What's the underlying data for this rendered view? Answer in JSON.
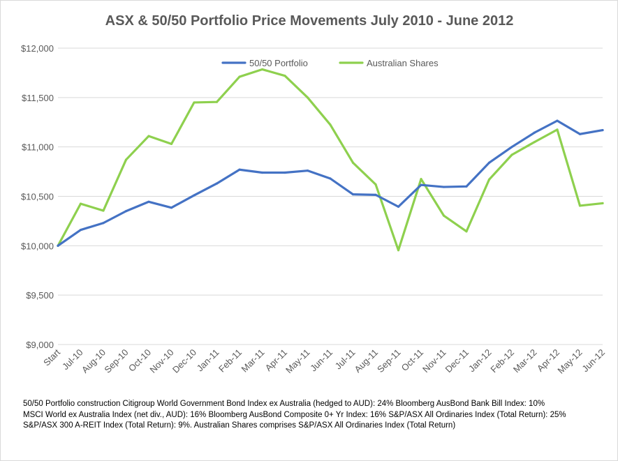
{
  "chart_data": {
    "type": "line",
    "title": "ASX & 50/50 Portfolio Price Movements July 2010 - June 2012",
    "xlabel": "",
    "ylabel": "",
    "ylim": [
      9000,
      12000
    ],
    "ytick_values": [
      9000,
      9500,
      10000,
      10500,
      11000,
      11500,
      12000
    ],
    "ytick_labels": [
      "$9,000",
      "$9,500",
      "$10,000",
      "$10,500",
      "$11,000",
      "$11,500",
      "$12,000"
    ],
    "grid": true,
    "legend_position": "top-center",
    "categories": [
      "Start",
      "Jul-10",
      "Aug-10",
      "Sep-10",
      "Oct-10",
      "Nov-10",
      "Dec-10",
      "Jan-11",
      "Feb-11",
      "Mar-11",
      "Apr-11",
      "May-11",
      "Jun-11",
      "Jul-11",
      "Aug-11",
      "Sep-11",
      "Oct-11",
      "Nov-11",
      "Dec-11",
      "Jan-12",
      "Feb-12",
      "Mar-12",
      "Apr-12",
      "May-12",
      "Jun-12"
    ],
    "series": [
      {
        "name": "50/50 Portfolio",
        "color": "#4472c4",
        "values": [
          10000,
          10160,
          10230,
          10350,
          10445,
          10385,
          10510,
          10630,
          10770,
          10740,
          10740,
          10760,
          10680,
          10520,
          10515,
          10395,
          10615,
          10595,
          10600,
          10840,
          11000,
          11145,
          11265,
          11130,
          11170
        ]
      },
      {
        "name": "Australian Shares",
        "color": "#8ed04e",
        "values": [
          10000,
          10425,
          10355,
          10870,
          11110,
          11030,
          11450,
          11455,
          11710,
          11785,
          11720,
          11500,
          11225,
          10840,
          10620,
          9955,
          10675,
          10305,
          10145,
          10670,
          10920,
          11050,
          11175,
          10405,
          10430
        ]
      }
    ],
    "footnote_lines": [
      "50/50 Portfolio construction Citigroup World Government Bond Index ex Australia (hedged to AUD): 24% Bloomberg AusBond Bank Bill Index: 10%",
      "MSCI World ex Australia Index (net div., AUD): 16% Bloomberg AusBond Composite 0+ Yr Index: 16% S&P/ASX All Ordinaries Index (Total Return): 25%",
      "S&P/ASX 300 A-REIT Index (Total Return): 9%. Australian Shares comprises S&P/ASX All Ordinaries Index (Total Return)"
    ]
  }
}
